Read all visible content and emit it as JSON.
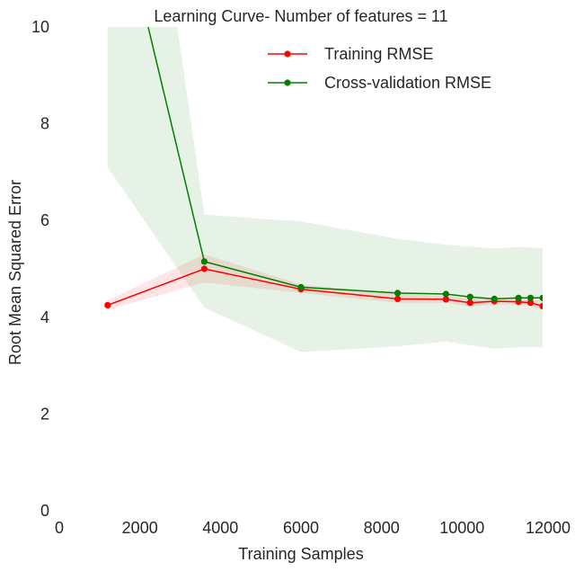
{
  "chart_data": {
    "type": "line",
    "title": "Learning Curve- Number of features = 11",
    "xlabel": "Training Samples",
    "ylabel": "Root Mean Squared Error",
    "xlim": [
      0,
      12000
    ],
    "ylim": [
      0,
      10
    ],
    "xticks": [
      0,
      2000,
      4000,
      6000,
      8000,
      10000,
      12000
    ],
    "yticks": [
      0,
      2,
      4,
      6,
      8,
      10
    ],
    "grid": false,
    "legend_position": "upper-right",
    "x": [
      1200,
      3600,
      6000,
      8400,
      9600,
      10200,
      10800,
      11400,
      11700,
      12000
    ],
    "series": [
      {
        "name": "Training RMSE",
        "color": "#ff0000",
        "band_color": "#ff0000",
        "values": [
          4.25,
          5.0,
          4.58,
          4.38,
          4.37,
          4.3,
          4.33,
          4.32,
          4.3,
          4.23
        ],
        "band_low": [
          4.15,
          4.72,
          4.5,
          4.3,
          4.3,
          4.22,
          4.26,
          4.26,
          4.23,
          4.15
        ],
        "band_high": [
          4.35,
          5.3,
          4.68,
          4.48,
          4.44,
          4.38,
          4.4,
          4.4,
          4.38,
          4.32
        ]
      },
      {
        "name": "Cross-validation RMSE",
        "color": "#008000",
        "band_color": "#008000",
        "values": [
          13.5,
          5.15,
          4.62,
          4.5,
          4.48,
          4.42,
          4.38,
          4.4,
          4.4,
          4.4
        ],
        "band_low": [
          7.1,
          4.2,
          3.28,
          3.4,
          3.5,
          3.42,
          3.35,
          3.38,
          3.38,
          3.38
        ],
        "band_high": [
          20,
          6.12,
          5.98,
          5.62,
          5.5,
          5.46,
          5.42,
          5.45,
          5.44,
          5.42
        ]
      }
    ]
  }
}
